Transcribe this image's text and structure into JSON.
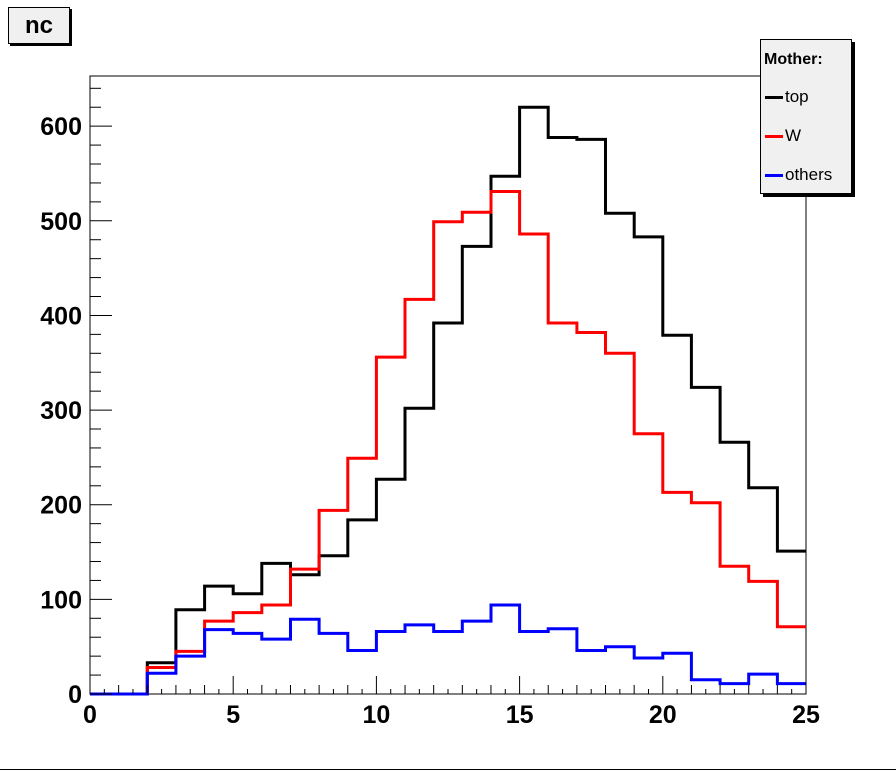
{
  "title": "nc",
  "chart_data": {
    "type": "histogram-step",
    "xlim": [
      0,
      25
    ],
    "ylim": [
      0,
      653
    ],
    "x_ticks": [
      0,
      5,
      10,
      15,
      20,
      25
    ],
    "y_ticks": [
      0,
      100,
      200,
      300,
      400,
      500,
      600
    ],
    "bin_edges": [
      0,
      1,
      2,
      3,
      4,
      5,
      6,
      7,
      8,
      9,
      10,
      11,
      12,
      13,
      14,
      15,
      16,
      17,
      18,
      19,
      20,
      21,
      22,
      23,
      24,
      25
    ],
    "legend": {
      "title": "Mother:",
      "placement": "top-right"
    },
    "series": [
      {
        "name": "top",
        "color": "#000000",
        "values": [
          0,
          0,
          33,
          89,
          114,
          106,
          138,
          126,
          146,
          184,
          227,
          302,
          392,
          473,
          547,
          620,
          588,
          586,
          508,
          483,
          379,
          324,
          266,
          218,
          151
        ]
      },
      {
        "name": "W",
        "color": "#ff0000",
        "values": [
          0,
          0,
          28,
          45,
          77,
          86,
          94,
          132,
          194,
          249,
          356,
          417,
          499,
          509,
          531,
          486,
          392,
          382,
          360,
          275,
          213,
          202,
          135,
          119,
          71
        ]
      },
      {
        "name": "others",
        "color": "#0000ff",
        "values": [
          0,
          0,
          22,
          40,
          68,
          64,
          58,
          79,
          64,
          46,
          66,
          73,
          66,
          77,
          94,
          66,
          69,
          46,
          50,
          38,
          43,
          15,
          11,
          21,
          11
        ]
      }
    ]
  }
}
